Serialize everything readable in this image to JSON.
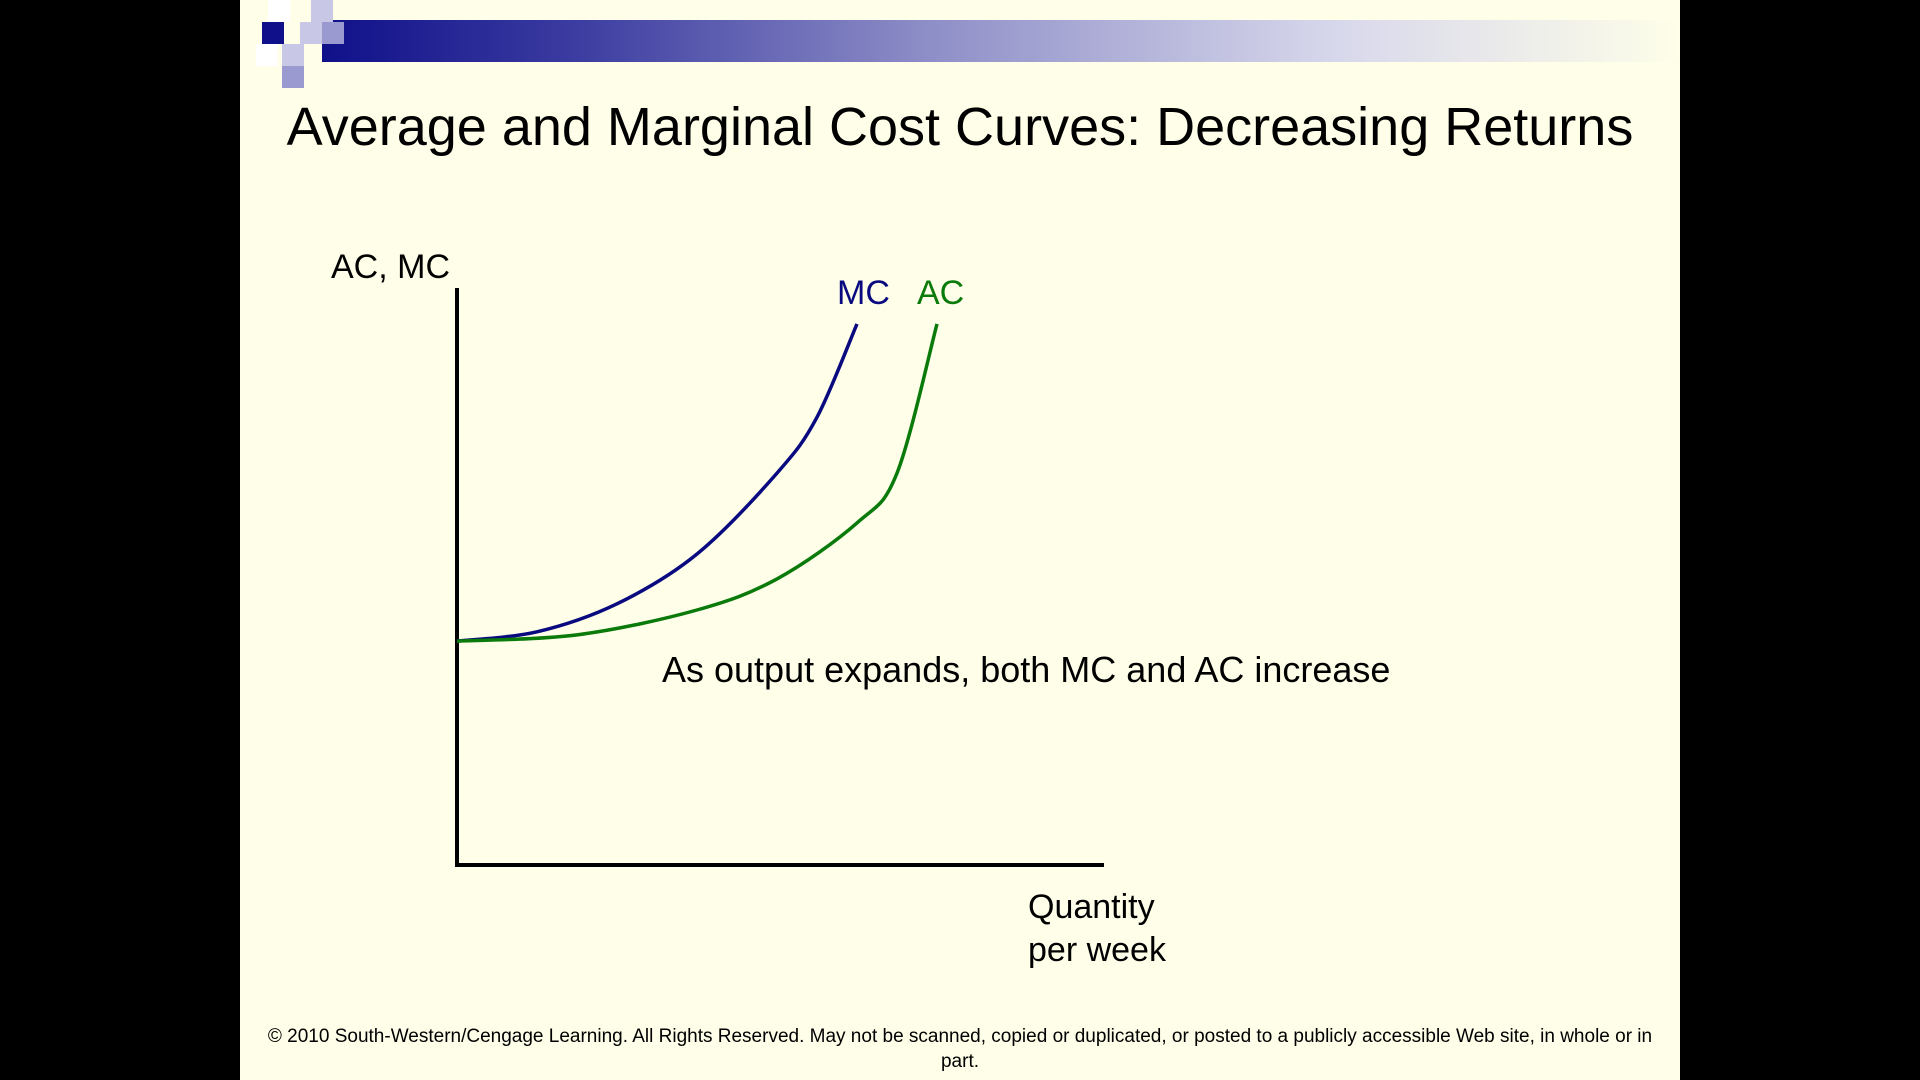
{
  "slide": {
    "title": "Average and Marginal Cost Curves: Decreasing Returns",
    "copyright": "© 2010 South-Western/Cengage Learning. All Rights Reserved. May not be scanned, copied or duplicated, or posted to a publicly accessible Web site, in whole or in part.",
    "colors": {
      "background": "#fefee9",
      "decoration_dark": "#10108a",
      "decoration_light": "#9a9ad0",
      "mc_curve": "#0a0a80",
      "ac_curve": "#0a7a0a"
    }
  },
  "chart_data": {
    "type": "line",
    "title": "",
    "ylabel": "AC, MC",
    "xlabel_lines": [
      "Quantity",
      "per week"
    ],
    "annotation": "As output expands, both MC and AC increase",
    "grid": false,
    "series": [
      {
        "name": "MC",
        "color": "#0a0a80",
        "x": [
          0,
          10,
          20,
          30,
          40,
          45,
          50
        ],
        "y": [
          36,
          37.5,
          42,
          50,
          63,
          72,
          87
        ]
      },
      {
        "name": "AC",
        "color": "#0a7a0a",
        "x": [
          0,
          15,
          30,
          40,
          50,
          55,
          60
        ],
        "y": [
          36,
          37,
          41,
          46,
          55,
          63,
          87
        ]
      }
    ],
    "xlim": [
      0,
      100
    ],
    "ylim": [
      0,
      100
    ]
  }
}
